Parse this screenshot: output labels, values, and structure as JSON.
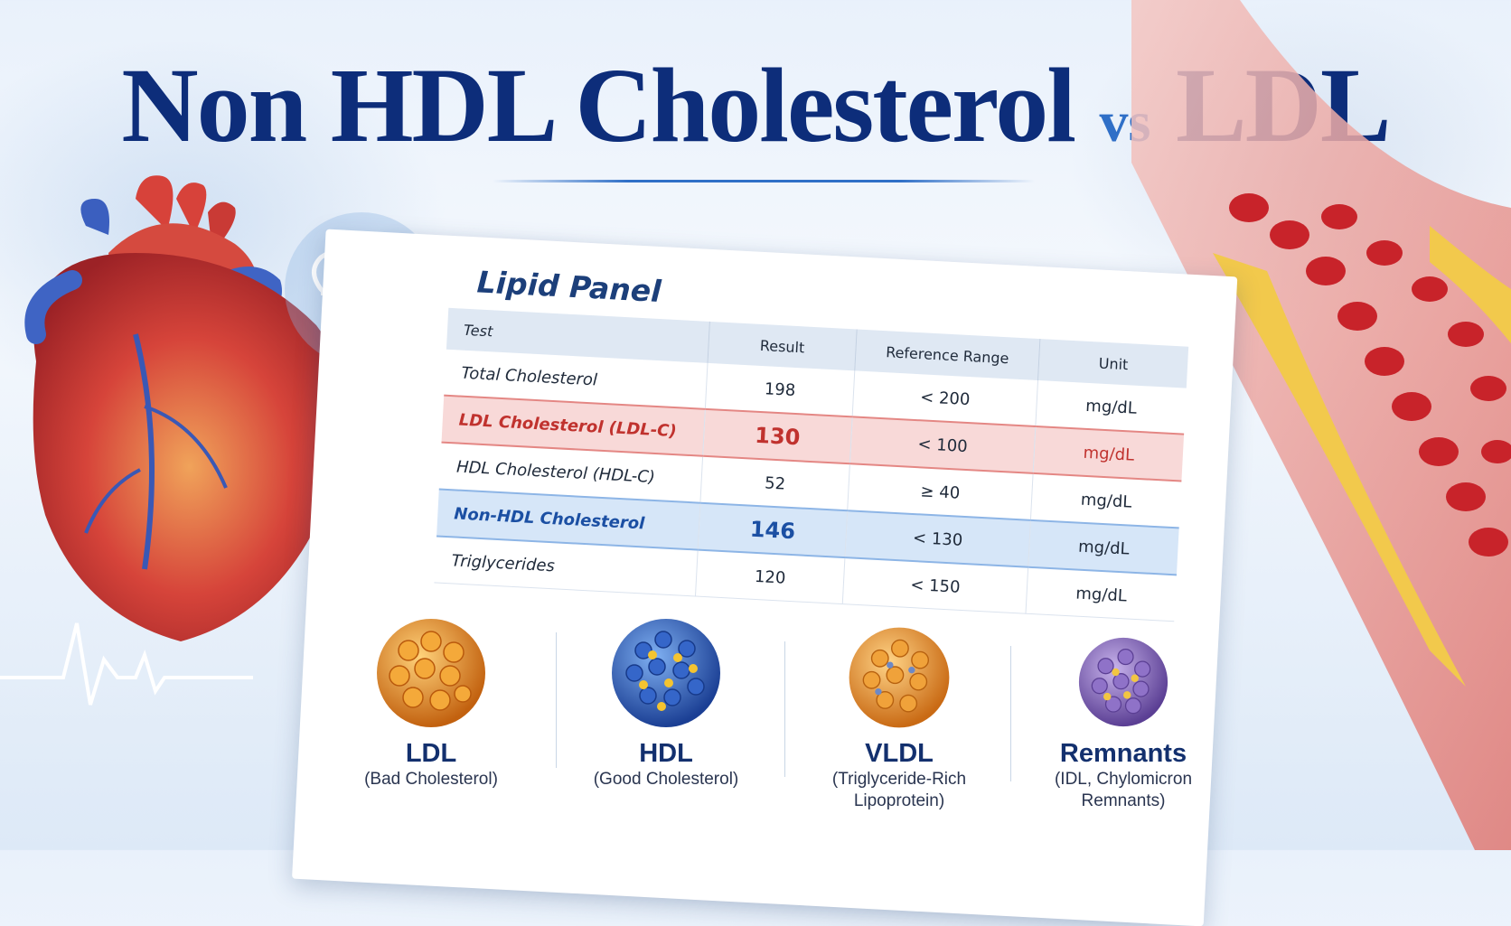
{
  "title": {
    "main": "Non HDL Cholesterol",
    "vs": "vs",
    "tail": "LDL"
  },
  "panel": {
    "title": "Lipid Panel",
    "headers": [
      "Test",
      "Result",
      "Reference Range",
      "Unit"
    ],
    "rows": [
      {
        "test": "Total Cholesterol",
        "result": "198",
        "range": "< 200",
        "unit": "mg/dL",
        "highlight": "none"
      },
      {
        "test": "LDL Cholesterol (LDL-C)",
        "result": "130",
        "range": "< 100",
        "unit": "mg/dL",
        "highlight": "red"
      },
      {
        "test": "HDL Cholesterol (HDL-C)",
        "result": "52",
        "range": "≥ 40",
        "unit": "mg/dL",
        "highlight": "none"
      },
      {
        "test": "Non-HDL Cholesterol",
        "result": "146",
        "range": "< 130",
        "unit": "mg/dL",
        "highlight": "blue"
      },
      {
        "test": "Triglycerides",
        "result": "120",
        "range": "< 150",
        "unit": "mg/dL",
        "highlight": "none"
      }
    ]
  },
  "particles": [
    {
      "name": "LDL",
      "desc1": "(Bad Cholesterol)",
      "desc2": "",
      "color": "#e98a1c",
      "icon": "ldl-particle-icon"
    },
    {
      "name": "HDL",
      "desc1": "(Good Cholesterol)",
      "desc2": "",
      "color": "#2f62c4",
      "icon": "hdl-particle-icon"
    },
    {
      "name": "VLDL",
      "desc1": "(Triglyceride-Rich",
      "desc2": "Lipoprotein)",
      "color": "#ea8f24",
      "icon": "vldl-particle-icon"
    },
    {
      "name": "Remnants",
      "desc1": "(IDL, Chylomicron",
      "desc2": "Remnants)",
      "color": "#8c6bbf",
      "icon": "remnant-particle-icon"
    }
  ],
  "colors": {
    "title": "#0d2d7a",
    "vs": "#2f6fc7",
    "ldl_highlight": "#f8d9d8",
    "nonhdl_highlight": "#d6e6f8"
  }
}
